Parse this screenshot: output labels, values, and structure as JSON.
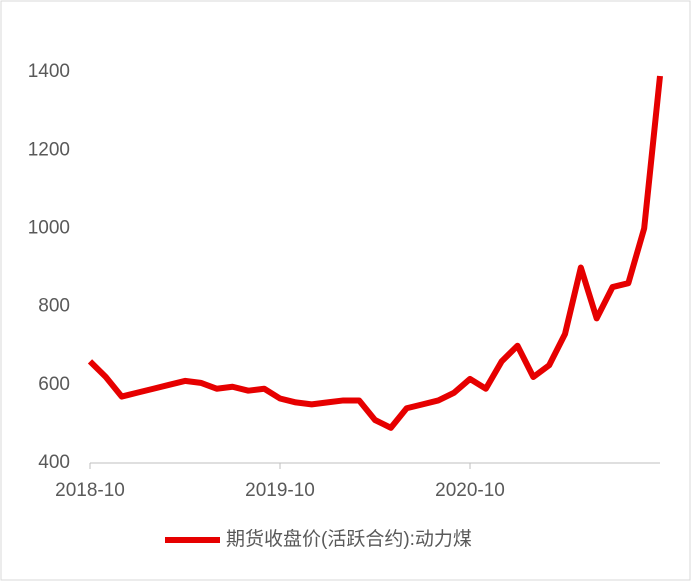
{
  "chart_data": {
    "type": "line",
    "x": [
      "2018-10",
      "2018-11",
      "2018-12",
      "2019-01",
      "2019-02",
      "2019-03",
      "2019-04",
      "2019-05",
      "2019-06",
      "2019-07",
      "2019-08",
      "2019-09",
      "2019-10",
      "2019-11",
      "2019-12",
      "2020-01",
      "2020-02",
      "2020-03",
      "2020-04",
      "2020-05",
      "2020-06",
      "2020-07",
      "2020-08",
      "2020-09",
      "2020-10",
      "2020-11",
      "2020-12",
      "2021-01",
      "2021-02",
      "2021-03",
      "2021-04",
      "2021-05",
      "2021-06",
      "2021-07",
      "2021-08",
      "2021-09",
      "2021-10"
    ],
    "series": [
      {
        "name": "期货收盘价(活跃合约):动力煤",
        "color": "#e60000",
        "values": [
          660,
          620,
          570,
          580,
          590,
          600,
          610,
          605,
          590,
          595,
          585,
          590,
          565,
          555,
          550,
          555,
          560,
          560,
          510,
          490,
          540,
          550,
          560,
          580,
          615,
          590,
          660,
          700,
          620,
          650,
          730,
          900,
          770,
          850,
          860,
          1000,
          1390
        ]
      }
    ],
    "xlim": [
      "2018-10",
      "2021-10"
    ],
    "xticks": [
      "2018-10",
      "2019-10",
      "2020-10"
    ],
    "ylim": [
      400,
      1500
    ],
    "yticks": [
      400,
      600,
      800,
      1000,
      1200,
      1400
    ]
  }
}
